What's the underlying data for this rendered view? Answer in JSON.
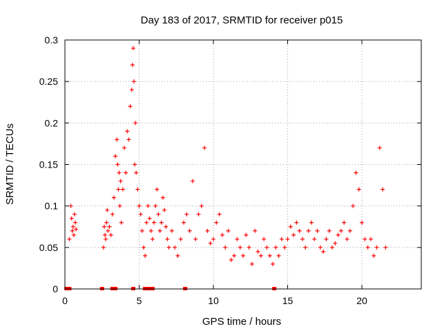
{
  "chart_data": {
    "type": "scatter",
    "title": "Day 183 of 2017, SRMTID for receiver p015",
    "xlabel": "GPS time / hours",
    "ylabel": "SRMTID / TECUs",
    "xlim": [
      0,
      24
    ],
    "ylim": [
      0,
      0.3
    ],
    "x_ticks": [
      0,
      5,
      10,
      15,
      20
    ],
    "x_tick_labels": [
      "0",
      "5",
      "10",
      "15",
      "20"
    ],
    "y_ticks": [
      0,
      0.05,
      0.1,
      0.15,
      0.2,
      0.25,
      0.3
    ],
    "y_tick_labels": [
      "0",
      "0.05",
      "0.1",
      "0.15",
      "0.2",
      "0.25",
      "0.3"
    ],
    "grid": true,
    "marker": "+",
    "color": "#ff0000",
    "series": [
      {
        "name": "SRMTID",
        "x": [
          0.3,
          0.4,
          0.45,
          0.5,
          0.55,
          0.6,
          0.65,
          0.7,
          0.75,
          2.6,
          2.65,
          2.7,
          2.75,
          2.8,
          2.85,
          2.9,
          3.0,
          3.1,
          3.2,
          3.3,
          3.4,
          3.5,
          3.55,
          3.6,
          3.65,
          3.7,
          3.75,
          3.8,
          3.9,
          4.0,
          4.1,
          4.2,
          4.3,
          4.4,
          4.5,
          4.55,
          4.6,
          4.65,
          4.7,
          4.75,
          4.8,
          4.9,
          5.0,
          5.1,
          5.2,
          5.3,
          5.4,
          5.5,
          5.6,
          5.7,
          5.8,
          5.9,
          6.0,
          6.1,
          6.2,
          6.3,
          6.4,
          6.5,
          6.6,
          6.7,
          6.8,
          6.9,
          7.0,
          7.2,
          7.4,
          7.6,
          7.8,
          8.0,
          8.2,
          8.4,
          8.6,
          8.8,
          9.0,
          9.2,
          9.4,
          9.6,
          9.8,
          10.0,
          10.2,
          10.4,
          10.6,
          10.8,
          11.0,
          11.2,
          11.4,
          11.6,
          11.8,
          12.0,
          12.2,
          12.4,
          12.6,
          12.8,
          13.0,
          13.2,
          13.4,
          13.6,
          13.8,
          14.0,
          14.2,
          14.4,
          14.6,
          14.8,
          15.0,
          15.2,
          15.4,
          15.6,
          15.8,
          16.0,
          16.2,
          16.4,
          16.6,
          16.8,
          17.0,
          17.2,
          17.4,
          17.6,
          17.8,
          18.0,
          18.2,
          18.4,
          18.6,
          18.8,
          19.0,
          19.2,
          19.4,
          19.6,
          19.8,
          20.0,
          20.2,
          20.4,
          20.6,
          20.8,
          21.0,
          21.2,
          21.4,
          21.6
        ],
        "y": [
          0.06,
          0.1,
          0.085,
          0.07,
          0.075,
          0.065,
          0.09,
          0.08,
          0.072,
          0.05,
          0.075,
          0.065,
          0.06,
          0.08,
          0.095,
          0.07,
          0.075,
          0.065,
          0.09,
          0.11,
          0.16,
          0.18,
          0.15,
          0.12,
          0.14,
          0.1,
          0.13,
          0.08,
          0.12,
          0.17,
          0.14,
          0.19,
          0.18,
          0.22,
          0.24,
          0.27,
          0.29,
          0.25,
          0.15,
          0.2,
          0.14,
          0.12,
          0.1,
          0.09,
          0.07,
          0.05,
          0.04,
          0.08,
          0.1,
          0.085,
          0.07,
          0.06,
          0.08,
          0.1,
          0.12,
          0.09,
          0.07,
          0.08,
          0.11,
          0.095,
          0.075,
          0.06,
          0.05,
          0.07,
          0.05,
          0.04,
          0.06,
          0.08,
          0.09,
          0.07,
          0.13,
          0.06,
          0.09,
          0.1,
          0.17,
          0.07,
          0.055,
          0.06,
          0.08,
          0.09,
          0.065,
          0.05,
          0.07,
          0.035,
          0.04,
          0.06,
          0.05,
          0.04,
          0.065,
          0.05,
          0.03,
          0.07,
          0.045,
          0.04,
          0.06,
          0.05,
          0.04,
          0.03,
          0.05,
          0.04,
          0.06,
          0.05,
          0.06,
          0.075,
          0.065,
          0.08,
          0.07,
          0.06,
          0.05,
          0.07,
          0.08,
          0.06,
          0.07,
          0.05,
          0.045,
          0.06,
          0.07,
          0.05,
          0.055,
          0.065,
          0.07,
          0.08,
          0.06,
          0.07,
          0.1,
          0.14,
          0.12,
          0.08,
          0.06,
          0.05,
          0.06,
          0.04,
          0.05,
          0.17,
          0.12,
          0.05
        ]
      }
    ],
    "gap_markers_x": [
      0.1,
      0.3,
      2.5,
      3.2,
      3.3,
      3.4,
      4.6,
      5.4,
      5.5,
      5.6,
      5.7,
      5.8,
      5.9,
      8.1,
      14.1
    ]
  }
}
